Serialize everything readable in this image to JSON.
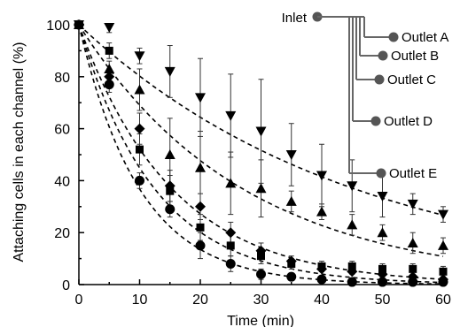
{
  "chart_data": {
    "type": "scatter",
    "xlabel": "Time (min)",
    "ylabel": "Attaching cells in each channel (%)",
    "xlim": [
      0,
      60
    ],
    "ylim": [
      0,
      100
    ],
    "x_ticks": [
      0,
      10,
      20,
      30,
      40,
      50,
      60
    ],
    "y_ticks": [
      0,
      20,
      40,
      60,
      80,
      100
    ],
    "grid": false,
    "x": [
      0,
      5,
      10,
      15,
      20,
      25,
      30,
      35,
      40,
      45,
      50,
      55,
      60
    ],
    "series": [
      {
        "marker": "triangle-down",
        "values": [
          100,
          99,
          88,
          82,
          72,
          65,
          59,
          50,
          42,
          38,
          34,
          31,
          27
        ],
        "errors": [
          0,
          2,
          3,
          10,
          15,
          16,
          20,
          12,
          12,
          10,
          8,
          4,
          3
        ],
        "fit_rate": 0.022
      },
      {
        "marker": "triangle-up",
        "values": [
          100,
          83,
          75,
          50,
          45,
          39,
          37,
          32,
          28,
          23,
          20,
          16,
          15
        ],
        "errors": [
          0,
          3,
          8,
          14,
          14,
          12,
          11,
          4,
          3,
          4,
          3,
          4,
          3
        ],
        "fit_rate": 0.037
      },
      {
        "marker": "diamond",
        "values": [
          100,
          80,
          60,
          38,
          30,
          20,
          13,
          9,
          6,
          5,
          4,
          3,
          2
        ],
        "errors": [
          0,
          3,
          6,
          6,
          5,
          4,
          3,
          2,
          1,
          1,
          1,
          1,
          1
        ],
        "fit_rate": 0.065
      },
      {
        "marker": "square",
        "values": [
          100,
          90,
          52,
          36,
          22,
          15,
          11,
          8,
          7,
          7,
          6,
          6,
          5
        ],
        "errors": [
          0,
          3,
          6,
          6,
          5,
          4,
          3,
          2,
          2,
          2,
          2,
          2,
          2
        ],
        "fit_rate": 0.08
      },
      {
        "marker": "circle",
        "values": [
          100,
          77,
          40,
          29,
          15,
          8,
          4,
          3,
          2,
          1,
          1,
          1,
          1
        ],
        "errors": [
          0,
          3,
          3,
          3,
          5,
          3,
          2,
          1,
          1,
          1,
          1,
          1,
          1
        ],
        "fit_rate": 0.1
      }
    ],
    "inset": {
      "inlet_label": "Inlet",
      "outlets": [
        "Outlet A",
        "Outlet B",
        "Outlet C",
        "Outlet D",
        "Outlet E"
      ]
    }
  }
}
